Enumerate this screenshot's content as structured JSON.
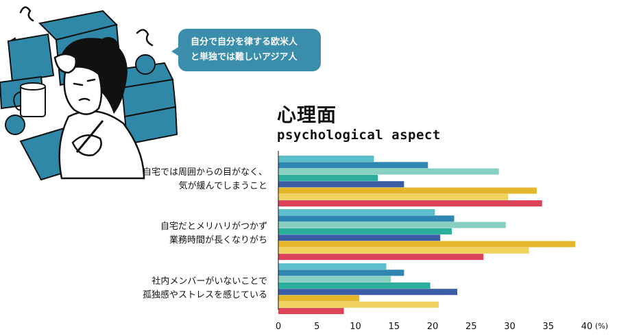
{
  "bubble": {
    "line1": "自分で自分を律する欧米人",
    "line2": "と単独では難しいアジア人"
  },
  "chart_data": {
    "type": "bar",
    "orientation": "horizontal",
    "title": "心理面",
    "subtitle": "psychological aspect",
    "categories": [
      [
        "自宅では周囲からの目がなく、",
        "気が緩んでしまうこと"
      ],
      [
        "自宅だとメリハリがつかず",
        "業務時間が長くなりがち"
      ],
      [
        "社内メンバーがいないことで",
        "孤独感やストレスを感じている"
      ]
    ],
    "series": [
      {
        "color": "#5bbfcc",
        "values": [
          12.4,
          20.3,
          14.0
        ]
      },
      {
        "color": "#2f86b0",
        "values": [
          19.4,
          22.8,
          16.3
        ]
      },
      {
        "color": "#86cfc1",
        "values": [
          28.6,
          29.5,
          14.6
        ]
      },
      {
        "color": "#2bae9c",
        "values": [
          12.9,
          22.5,
          19.7
        ]
      },
      {
        "color": "#3a5da6",
        "values": [
          16.3,
          21.0,
          23.2
        ]
      },
      {
        "color": "#e4b72a",
        "values": [
          33.5,
          38.5,
          10.5
        ]
      },
      {
        "color": "#f0d35e",
        "values": [
          29.8,
          32.5,
          20.8
        ]
      },
      {
        "color": "#dd4358",
        "values": [
          34.2,
          26.6,
          8.5
        ]
      }
    ],
    "xlim": [
      0,
      40
    ],
    "xticks": [
      "0",
      "5",
      "10",
      "15",
      "20",
      "25",
      "30",
      "35",
      "40"
    ],
    "unit": "(%)"
  }
}
